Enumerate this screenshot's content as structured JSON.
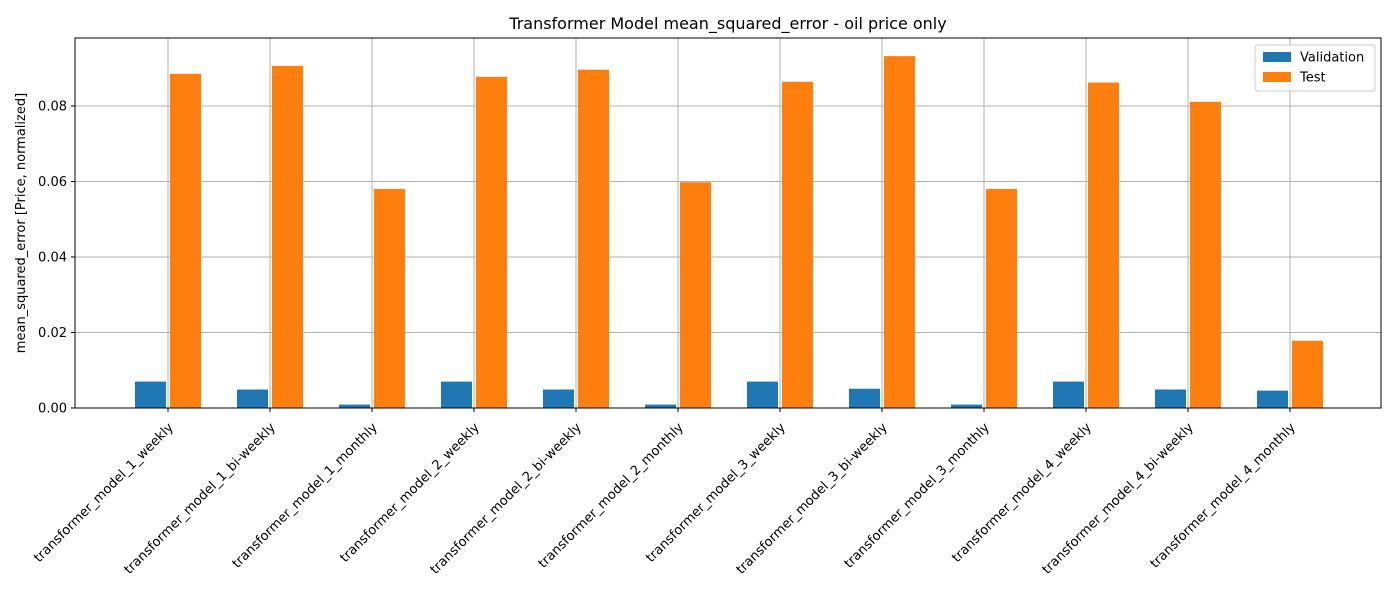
{
  "chart_data": {
    "type": "bar",
    "title": "Transformer Model mean_squared_error - oil price only",
    "xlabel": "",
    "ylabel": "mean_squared_error [Price, normalized]",
    "categories": [
      "transformer_model_1_weekly",
      "transformer_model_1_bi-weekly",
      "transformer_model_1_monthly",
      "transformer_model_2_weekly",
      "transformer_model_2_bi-weekly",
      "transformer_model_2_monthly",
      "transformer_model_3_weekly",
      "transformer_model_3_bi-weekly",
      "transformer_model_3_monthly",
      "transformer_model_4_weekly",
      "transformer_model_4_bi-weekly",
      "transformer_model_4_monthly"
    ],
    "series": [
      {
        "name": "Validation",
        "color": "#1f77b4",
        "values": [
          0.007,
          0.0049,
          0.0009,
          0.007,
          0.0049,
          0.0009,
          0.007,
          0.0051,
          0.0009,
          0.007,
          0.0049,
          0.0046
        ]
      },
      {
        "name": "Test",
        "color": "#ff7f0e",
        "values": [
          0.0885,
          0.0906,
          0.058,
          0.0877,
          0.0896,
          0.0598,
          0.0864,
          0.0932,
          0.058,
          0.0862,
          0.0811,
          0.0178
        ]
      }
    ],
    "ylim": [
      0,
      0.098
    ],
    "yticks": [
      "0.00",
      "0.02",
      "0.04",
      "0.06",
      "0.08"
    ],
    "grid": true,
    "legend_position": "top-right"
  }
}
